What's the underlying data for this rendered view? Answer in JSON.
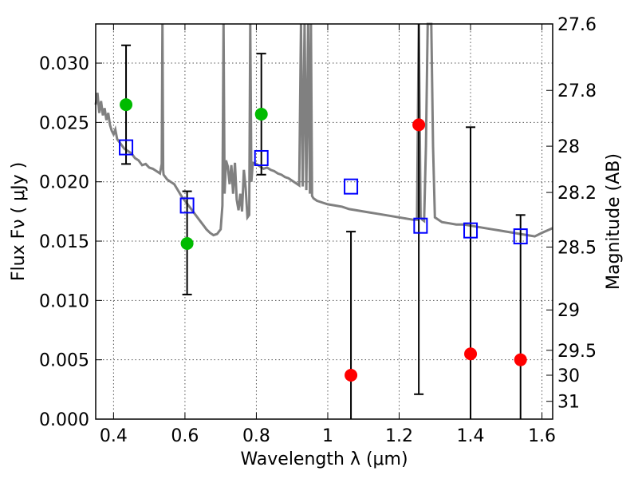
{
  "chart_data": {
    "type": "scatter",
    "xlabel": "Wavelength  λ (μm)",
    "ylabel": "Flux  Fν  ( μJy )",
    "y2label": "Magnitude (AB)",
    "xlim": [
      0.35,
      1.63
    ],
    "ylim": [
      0.0,
      0.0333
    ],
    "grid": true,
    "x_ticks": [
      {
        "value": 0.4,
        "label": "0.4"
      },
      {
        "value": 0.6,
        "label": "0.6"
      },
      {
        "value": 0.8,
        "label": "0.8"
      },
      {
        "value": 1.0,
        "label": "1"
      },
      {
        "value": 1.2,
        "label": "1.2"
      },
      {
        "value": 1.4,
        "label": "1.4"
      },
      {
        "value": 1.6,
        "label": "1.6"
      }
    ],
    "y_ticks": [
      {
        "value": 0.0,
        "label": "0.000"
      },
      {
        "value": 0.005,
        "label": "0.005"
      },
      {
        "value": 0.01,
        "label": "0.010"
      },
      {
        "value": 0.015,
        "label": "0.015"
      },
      {
        "value": 0.02,
        "label": "0.020"
      },
      {
        "value": 0.025,
        "label": "0.025"
      },
      {
        "value": 0.03,
        "label": "0.030"
      }
    ],
    "y2_ticks": [
      {
        "label": "27.6",
        "flux": 0.0333
      },
      {
        "label": "27.8",
        "flux": 0.0277
      },
      {
        "label": "28",
        "flux": 0.023
      },
      {
        "label": "28.2",
        "flux": 0.0191
      },
      {
        "label": "28.5",
        "flux": 0.0145
      },
      {
        "label": "29",
        "flux": 0.0092
      },
      {
        "label": "29.5",
        "flux": 0.0058
      },
      {
        "label": "30",
        "flux": 0.0037
      },
      {
        "label": "31",
        "flux": 0.0015
      }
    ],
    "spectrum": {
      "color": "#808080",
      "points": [
        [
          0.35,
          0.0265
        ],
        [
          0.355,
          0.0275
        ],
        [
          0.36,
          0.0258
        ],
        [
          0.365,
          0.0268
        ],
        [
          0.37,
          0.0256
        ],
        [
          0.375,
          0.0262
        ],
        [
          0.38,
          0.0252
        ],
        [
          0.385,
          0.0258
        ],
        [
          0.39,
          0.0248
        ],
        [
          0.395,
          0.0243
        ],
        [
          0.4,
          0.024
        ],
        [
          0.405,
          0.0244
        ],
        [
          0.41,
          0.0236
        ],
        [
          0.42,
          0.0232
        ],
        [
          0.43,
          0.0228
        ],
        [
          0.44,
          0.0226
        ],
        [
          0.45,
          0.0224
        ],
        [
          0.46,
          0.022
        ],
        [
          0.47,
          0.0218
        ],
        [
          0.48,
          0.0214
        ],
        [
          0.49,
          0.0215
        ],
        [
          0.5,
          0.0212
        ],
        [
          0.51,
          0.0211
        ],
        [
          0.52,
          0.0209
        ],
        [
          0.53,
          0.0207
        ],
        [
          0.535,
          0.0215
        ],
        [
          0.537,
          0.0336
        ],
        [
          0.539,
          0.021
        ],
        [
          0.54,
          0.0206
        ],
        [
          0.55,
          0.0202
        ],
        [
          0.56,
          0.02
        ],
        [
          0.57,
          0.0198
        ],
        [
          0.58,
          0.0193
        ],
        [
          0.59,
          0.0188
        ],
        [
          0.6,
          0.0184
        ],
        [
          0.61,
          0.018
        ],
        [
          0.62,
          0.0176
        ],
        [
          0.63,
          0.0172
        ],
        [
          0.64,
          0.0168
        ],
        [
          0.65,
          0.0164
        ],
        [
          0.66,
          0.016
        ],
        [
          0.67,
          0.0157
        ],
        [
          0.68,
          0.0155
        ],
        [
          0.69,
          0.0156
        ],
        [
          0.7,
          0.016
        ],
        [
          0.705,
          0.018
        ],
        [
          0.708,
          0.0336
        ],
        [
          0.711,
          0.019
        ],
        [
          0.715,
          0.0218
        ],
        [
          0.72,
          0.0213
        ],
        [
          0.725,
          0.0198
        ],
        [
          0.73,
          0.0214
        ],
        [
          0.735,
          0.019
        ],
        [
          0.74,
          0.0216
        ],
        [
          0.745,
          0.0185
        ],
        [
          0.75,
          0.0176
        ],
        [
          0.755,
          0.019
        ],
        [
          0.76,
          0.0175
        ],
        [
          0.765,
          0.021
        ],
        [
          0.77,
          0.0195
        ],
        [
          0.775,
          0.017
        ],
        [
          0.78,
          0.0172
        ],
        [
          0.783,
          0.0336
        ],
        [
          0.786,
          0.02
        ],
        [
          0.79,
          0.0216
        ],
        [
          0.8,
          0.0215
        ],
        [
          0.81,
          0.0213
        ],
        [
          0.82,
          0.0211
        ],
        [
          0.83,
          0.0212
        ],
        [
          0.84,
          0.021
        ],
        [
          0.85,
          0.0209
        ],
        [
          0.86,
          0.0207
        ],
        [
          0.87,
          0.0206
        ],
        [
          0.88,
          0.0204
        ],
        [
          0.89,
          0.0203
        ],
        [
          0.9,
          0.0201
        ],
        [
          0.91,
          0.0199
        ],
        [
          0.92,
          0.0197
        ],
        [
          0.925,
          0.0336
        ],
        [
          0.93,
          0.0196
        ],
        [
          0.935,
          0.0336
        ],
        [
          0.94,
          0.0193
        ],
        [
          0.945,
          0.0336
        ],
        [
          0.95,
          0.019
        ],
        [
          0.953,
          0.0336
        ],
        [
          0.956,
          0.0188
        ],
        [
          0.96,
          0.0186
        ],
        [
          0.97,
          0.0184
        ],
        [
          0.98,
          0.0183
        ],
        [
          0.99,
          0.0182
        ],
        [
          1.0,
          0.0181
        ],
        [
          1.02,
          0.018
        ],
        [
          1.04,
          0.0179
        ],
        [
          1.06,
          0.0177
        ],
        [
          1.08,
          0.0176
        ],
        [
          1.1,
          0.0175
        ],
        [
          1.12,
          0.0174
        ],
        [
          1.14,
          0.0173
        ],
        [
          1.16,
          0.0172
        ],
        [
          1.18,
          0.0171
        ],
        [
          1.2,
          0.017
        ],
        [
          1.22,
          0.0169
        ],
        [
          1.24,
          0.0168
        ],
        [
          1.25,
          0.0168
        ],
        [
          1.255,
          0.0336
        ],
        [
          1.26,
          0.017
        ],
        [
          1.265,
          0.0168
        ],
        [
          1.27,
          0.0167
        ],
        [
          1.275,
          0.023
        ],
        [
          1.28,
          0.0336
        ],
        [
          1.29,
          0.0336
        ],
        [
          1.295,
          0.023
        ],
        [
          1.3,
          0.017
        ],
        [
          1.32,
          0.0166
        ],
        [
          1.34,
          0.0165
        ],
        [
          1.36,
          0.0164
        ],
        [
          1.38,
          0.0164
        ],
        [
          1.4,
          0.0163
        ],
        [
          1.42,
          0.0162
        ],
        [
          1.44,
          0.0161
        ],
        [
          1.46,
          0.016
        ],
        [
          1.48,
          0.0159
        ],
        [
          1.5,
          0.0158
        ],
        [
          1.52,
          0.0157
        ],
        [
          1.54,
          0.0156
        ],
        [
          1.56,
          0.0155
        ],
        [
          1.58,
          0.0154
        ],
        [
          1.6,
          0.0157
        ],
        [
          1.63,
          0.0161
        ]
      ]
    },
    "model_points": {
      "color": "#0000ff",
      "points": [
        {
          "x": 0.435,
          "y": 0.0229
        },
        {
          "x": 0.606,
          "y": 0.018
        },
        {
          "x": 0.814,
          "y": 0.022
        },
        {
          "x": 1.065,
          "y": 0.0196
        },
        {
          "x": 1.26,
          "y": 0.0163
        },
        {
          "x": 1.4,
          "y": 0.0159
        },
        {
          "x": 1.54,
          "y": 0.0154
        }
      ]
    },
    "detections": {
      "color": "#00bb00",
      "points": [
        {
          "x": 0.435,
          "y": 0.0265,
          "err_low": 0.0215,
          "err_high": 0.0315
        },
        {
          "x": 0.606,
          "y": 0.0148,
          "err_low": 0.0105,
          "err_high": 0.0192
        },
        {
          "x": 0.814,
          "y": 0.0257,
          "err_low": 0.0206,
          "err_high": 0.0308
        }
      ]
    },
    "non_detections": {
      "color": "#ff0000",
      "points": [
        {
          "x": 1.065,
          "y": 0.0037,
          "err_low": 0.0,
          "err_high": 0.0158
        },
        {
          "x": 1.255,
          "y": 0.0248,
          "err_low": 0.0021,
          "err_high": 0.0336
        },
        {
          "x": 1.4,
          "y": 0.0055,
          "err_low": 0.0,
          "err_high": 0.0246
        },
        {
          "x": 1.54,
          "y": 0.005,
          "err_low": 0.0,
          "err_high": 0.0172
        }
      ]
    }
  }
}
